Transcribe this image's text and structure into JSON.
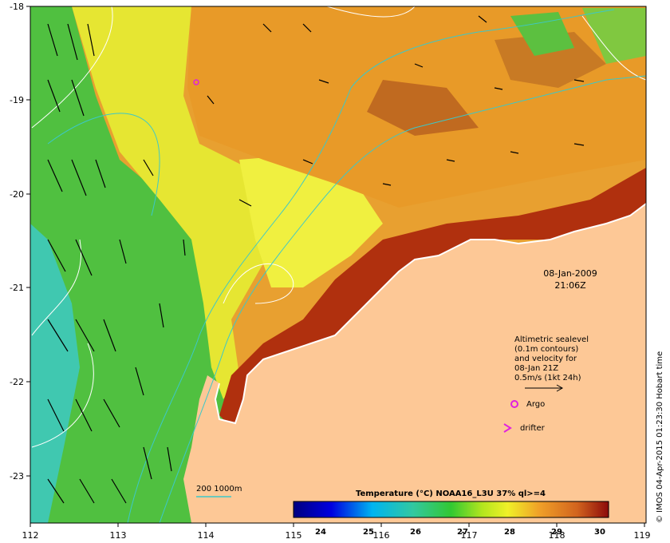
{
  "map": {
    "lon_ticks": [
      "112",
      "113",
      "114",
      "115",
      "116",
      "117",
      "118",
      "119"
    ],
    "lat_ticks": [
      "-18",
      "-19",
      "-20",
      "-21",
      "-22",
      "-23"
    ],
    "date": "08-Jan-2009",
    "time": "21:06Z",
    "legend_lines": [
      "Altimetric sealevel",
      "(0.1m contours)",
      "and velocity for",
      "08-Jan 21Z",
      "0.5m/s (1kt 24h)"
    ],
    "argo_label": "Argo",
    "drifter_label": "drifter",
    "depth_label": "200  1000m",
    "colorbar_title": "Temperature (°C) NOAA16_L3U 37% ql>=4",
    "colorbar_ticks": [
      "24",
      "25",
      "26",
      "27",
      "28",
      "29",
      "30"
    ],
    "credit": "© IMOS 04-Apr-2015 01:23:30 Hobart time",
    "colors": {
      "land": "#fdc896",
      "warm": "#c8501e",
      "hot": "#a01e0a",
      "mid": "#f0a028",
      "yellow": "#f0f03c",
      "green": "#46c83c",
      "teal": "#3cc8a0",
      "isobath": "#3cc8c8",
      "marker": "#e020e0"
    }
  }
}
